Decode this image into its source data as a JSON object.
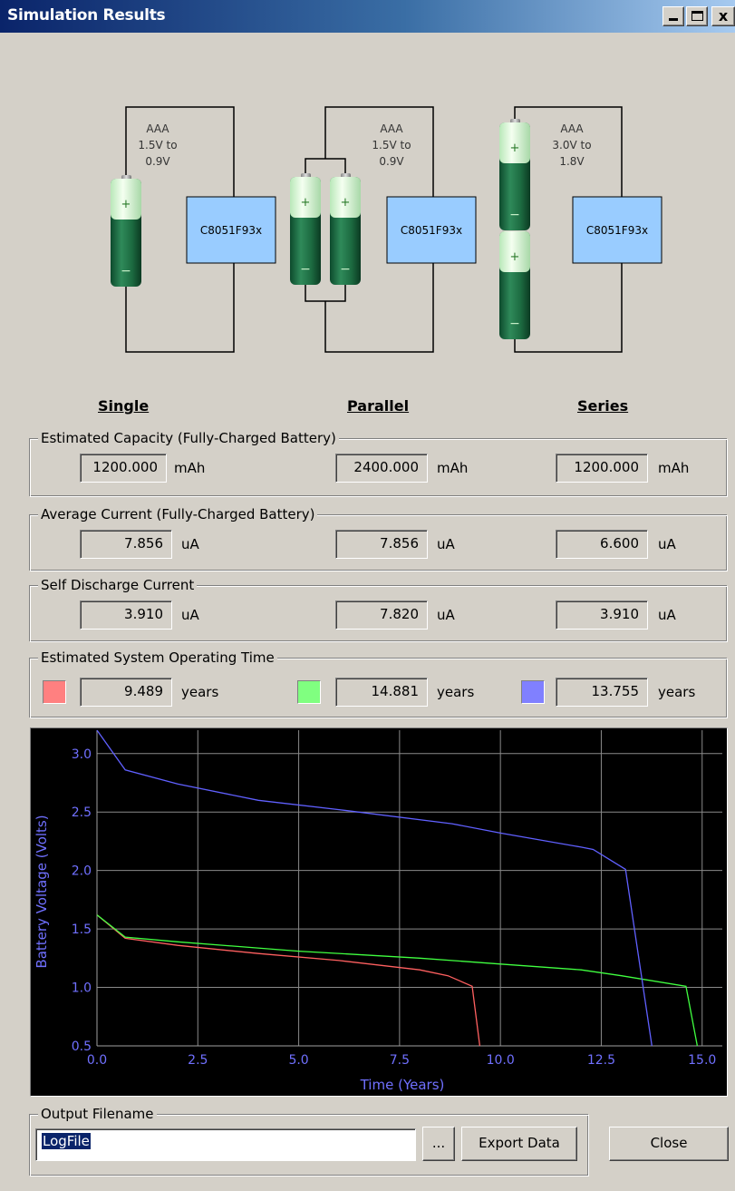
{
  "window": {
    "title": "Simulation Results",
    "minimize_label": "_",
    "close_label": "x"
  },
  "circuits": [
    {
      "battery": "AAA",
      "range1": "1.5V to",
      "range2": "0.9V",
      "chip": "C8051F93x"
    },
    {
      "battery": "AAA",
      "range1": "1.5V to",
      "range2": "0.9V",
      "chip": "C8051F93x"
    },
    {
      "battery": "AAA",
      "range1": "3.0V to",
      "range2": "1.8V",
      "chip": "C8051F93x"
    }
  ],
  "columns": [
    "Single",
    "Parallel",
    "Series"
  ],
  "capacity": {
    "legend": "Estimated Capacity (Fully-Charged Battery)",
    "values": [
      "1200.000",
      "2400.000",
      "1200.000"
    ],
    "unit": "mAh"
  },
  "avg_current": {
    "legend": "Average Current (Fully-Charged Battery)",
    "values": [
      "7.856",
      "7.856",
      "6.600"
    ],
    "unit": "uA"
  },
  "self_discharge": {
    "legend": "Self Discharge Current",
    "values": [
      "3.910",
      "7.820",
      "3.910"
    ],
    "unit": "uA"
  },
  "operating_time": {
    "legend": "Estimated System Operating Time",
    "values": [
      "9.489",
      "14.881",
      "13.755"
    ],
    "unit": "years",
    "colors": [
      "#ff8080",
      "#80ff80",
      "#8080ff"
    ]
  },
  "chart_data": {
    "type": "line",
    "xlabel": "Time (Years)",
    "ylabel": "Battery Voltage (Volts)",
    "xlim": [
      0,
      15.5
    ],
    "ylim": [
      0.5,
      3.2
    ],
    "xticks": [
      "0.0",
      "2.5",
      "5.0",
      "7.5",
      "10.0",
      "12.5",
      "15.0"
    ],
    "yticks": [
      "0.5",
      "1.0",
      "1.5",
      "2.0",
      "2.5",
      "3.0"
    ],
    "grid": true,
    "series": [
      {
        "color": "#ff6060",
        "x": [
          0,
          0.7,
          2,
          4,
          6,
          8,
          8.7,
          9.3,
          9.489
        ],
        "y": [
          1.62,
          1.42,
          1.36,
          1.29,
          1.23,
          1.15,
          1.1,
          1.01,
          0.5
        ]
      },
      {
        "color": "#40ff40",
        "x": [
          0,
          0.7,
          2,
          5,
          8,
          10,
          12,
          13,
          14.6,
          14.881
        ],
        "y": [
          1.62,
          1.43,
          1.39,
          1.31,
          1.25,
          1.2,
          1.15,
          1.1,
          1.01,
          0.5
        ]
      },
      {
        "color": "#6060ff",
        "x": [
          0,
          0.7,
          2,
          4,
          6,
          8.8,
          10,
          12,
          12.3,
          13.1,
          13.755
        ],
        "y": [
          3.2,
          2.86,
          2.74,
          2.6,
          2.52,
          2.4,
          2.32,
          2.2,
          2.18,
          2.01,
          0.5
        ]
      }
    ]
  },
  "output": {
    "legend": "Output Filename",
    "filename": "LogFile",
    "browse_label": "...",
    "export_label": "Export Data",
    "close_label": "Close"
  }
}
